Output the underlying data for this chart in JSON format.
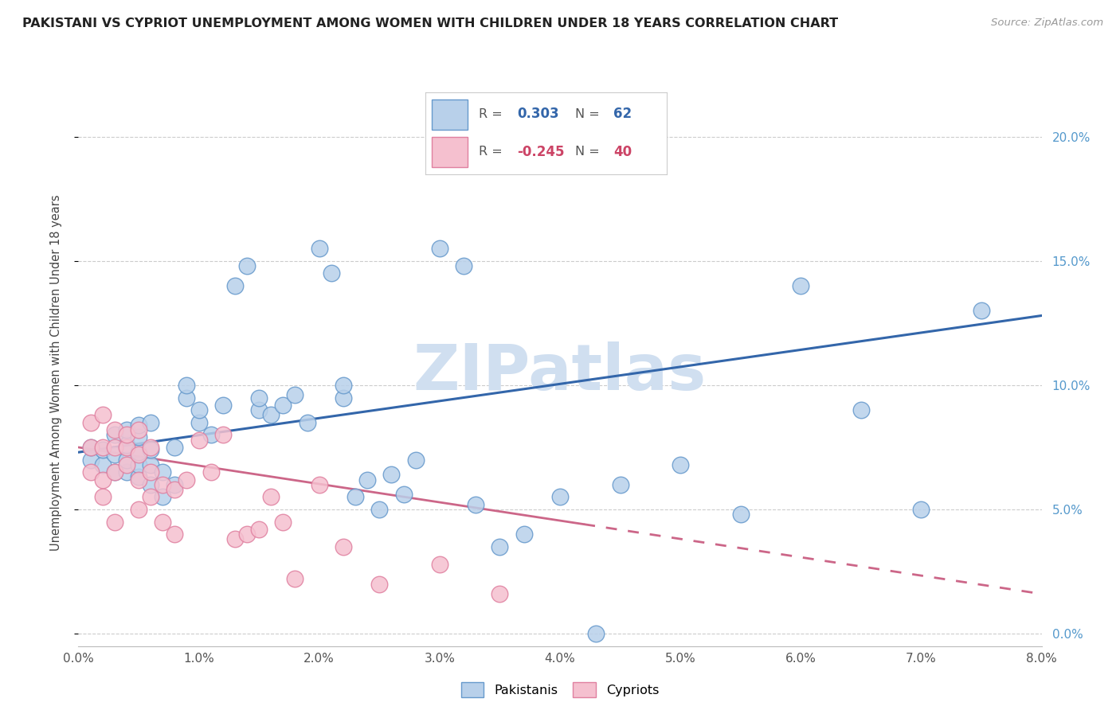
{
  "title": "PAKISTANI VS CYPRIOT UNEMPLOYMENT AMONG WOMEN WITH CHILDREN UNDER 18 YEARS CORRELATION CHART",
  "source": "Source: ZipAtlas.com",
  "ylabel": "Unemployment Among Women with Children Under 18 years",
  "xlim": [
    0.0,
    0.08
  ],
  "ylim": [
    -0.005,
    0.215
  ],
  "xticks": [
    0.0,
    0.01,
    0.02,
    0.03,
    0.04,
    0.05,
    0.06,
    0.07,
    0.08
  ],
  "xtick_labels": [
    "0.0%",
    "1.0%",
    "2.0%",
    "3.0%",
    "4.0%",
    "5.0%",
    "6.0%",
    "7.0%",
    "8.0%"
  ],
  "yticks_right": [
    0.0,
    0.05,
    0.1,
    0.15,
    0.2
  ],
  "ytick_labels_right": [
    "0.0%",
    "5.0%",
    "10.0%",
    "15.0%",
    "20.0%"
  ],
  "pakistani_R": 0.303,
  "pakistani_N": 62,
  "cypriot_R": -0.245,
  "cypriot_N": 40,
  "blue_color": "#b8d0ea",
  "blue_edge": "#6699cc",
  "pink_color": "#f5c0cf",
  "pink_edge": "#e080a0",
  "blue_line_color": "#3366aa",
  "pink_line_color": "#cc6688",
  "watermark_color": "#d0dff0",
  "pakistani_x": [
    0.001,
    0.001,
    0.002,
    0.002,
    0.003,
    0.003,
    0.003,
    0.004,
    0.004,
    0.004,
    0.004,
    0.005,
    0.005,
    0.005,
    0.005,
    0.005,
    0.006,
    0.006,
    0.006,
    0.006,
    0.007,
    0.007,
    0.008,
    0.008,
    0.009,
    0.009,
    0.01,
    0.01,
    0.011,
    0.012,
    0.013,
    0.014,
    0.015,
    0.015,
    0.016,
    0.017,
    0.018,
    0.019,
    0.02,
    0.021,
    0.022,
    0.022,
    0.023,
    0.024,
    0.025,
    0.026,
    0.027,
    0.028,
    0.03,
    0.032,
    0.033,
    0.035,
    0.037,
    0.04,
    0.043,
    0.045,
    0.05,
    0.055,
    0.06,
    0.065,
    0.07,
    0.075
  ],
  "pakistani_y": [
    0.07,
    0.075,
    0.068,
    0.074,
    0.065,
    0.072,
    0.08,
    0.065,
    0.07,
    0.076,
    0.082,
    0.063,
    0.068,
    0.073,
    0.079,
    0.084,
    0.06,
    0.068,
    0.074,
    0.085,
    0.055,
    0.065,
    0.06,
    0.075,
    0.095,
    0.1,
    0.085,
    0.09,
    0.08,
    0.092,
    0.14,
    0.148,
    0.09,
    0.095,
    0.088,
    0.092,
    0.096,
    0.085,
    0.155,
    0.145,
    0.095,
    0.1,
    0.055,
    0.062,
    0.05,
    0.064,
    0.056,
    0.07,
    0.155,
    0.148,
    0.052,
    0.035,
    0.04,
    0.055,
    0.0,
    0.06,
    0.068,
    0.048,
    0.14,
    0.09,
    0.05,
    0.13
  ],
  "cypriot_x": [
    0.001,
    0.001,
    0.001,
    0.002,
    0.002,
    0.002,
    0.002,
    0.003,
    0.003,
    0.003,
    0.003,
    0.004,
    0.004,
    0.004,
    0.005,
    0.005,
    0.005,
    0.005,
    0.006,
    0.006,
    0.006,
    0.007,
    0.007,
    0.008,
    0.008,
    0.009,
    0.01,
    0.011,
    0.012,
    0.013,
    0.014,
    0.015,
    0.016,
    0.017,
    0.018,
    0.02,
    0.022,
    0.025,
    0.03,
    0.035
  ],
  "cypriot_y": [
    0.085,
    0.075,
    0.065,
    0.088,
    0.075,
    0.062,
    0.055,
    0.082,
    0.075,
    0.065,
    0.045,
    0.075,
    0.08,
    0.068,
    0.082,
    0.072,
    0.062,
    0.05,
    0.075,
    0.065,
    0.055,
    0.06,
    0.045,
    0.058,
    0.04,
    0.062,
    0.078,
    0.065,
    0.08,
    0.038,
    0.04,
    0.042,
    0.055,
    0.045,
    0.022,
    0.06,
    0.035,
    0.02,
    0.028,
    0.016
  ],
  "blue_trend_x0": 0.0,
  "blue_trend_y0": 0.073,
  "blue_trend_x1": 0.08,
  "blue_trend_y1": 0.128,
  "pink_trend_x0": 0.0,
  "pink_trend_y0": 0.075,
  "pink_trend_x1": 0.08,
  "pink_trend_y1": 0.016
}
